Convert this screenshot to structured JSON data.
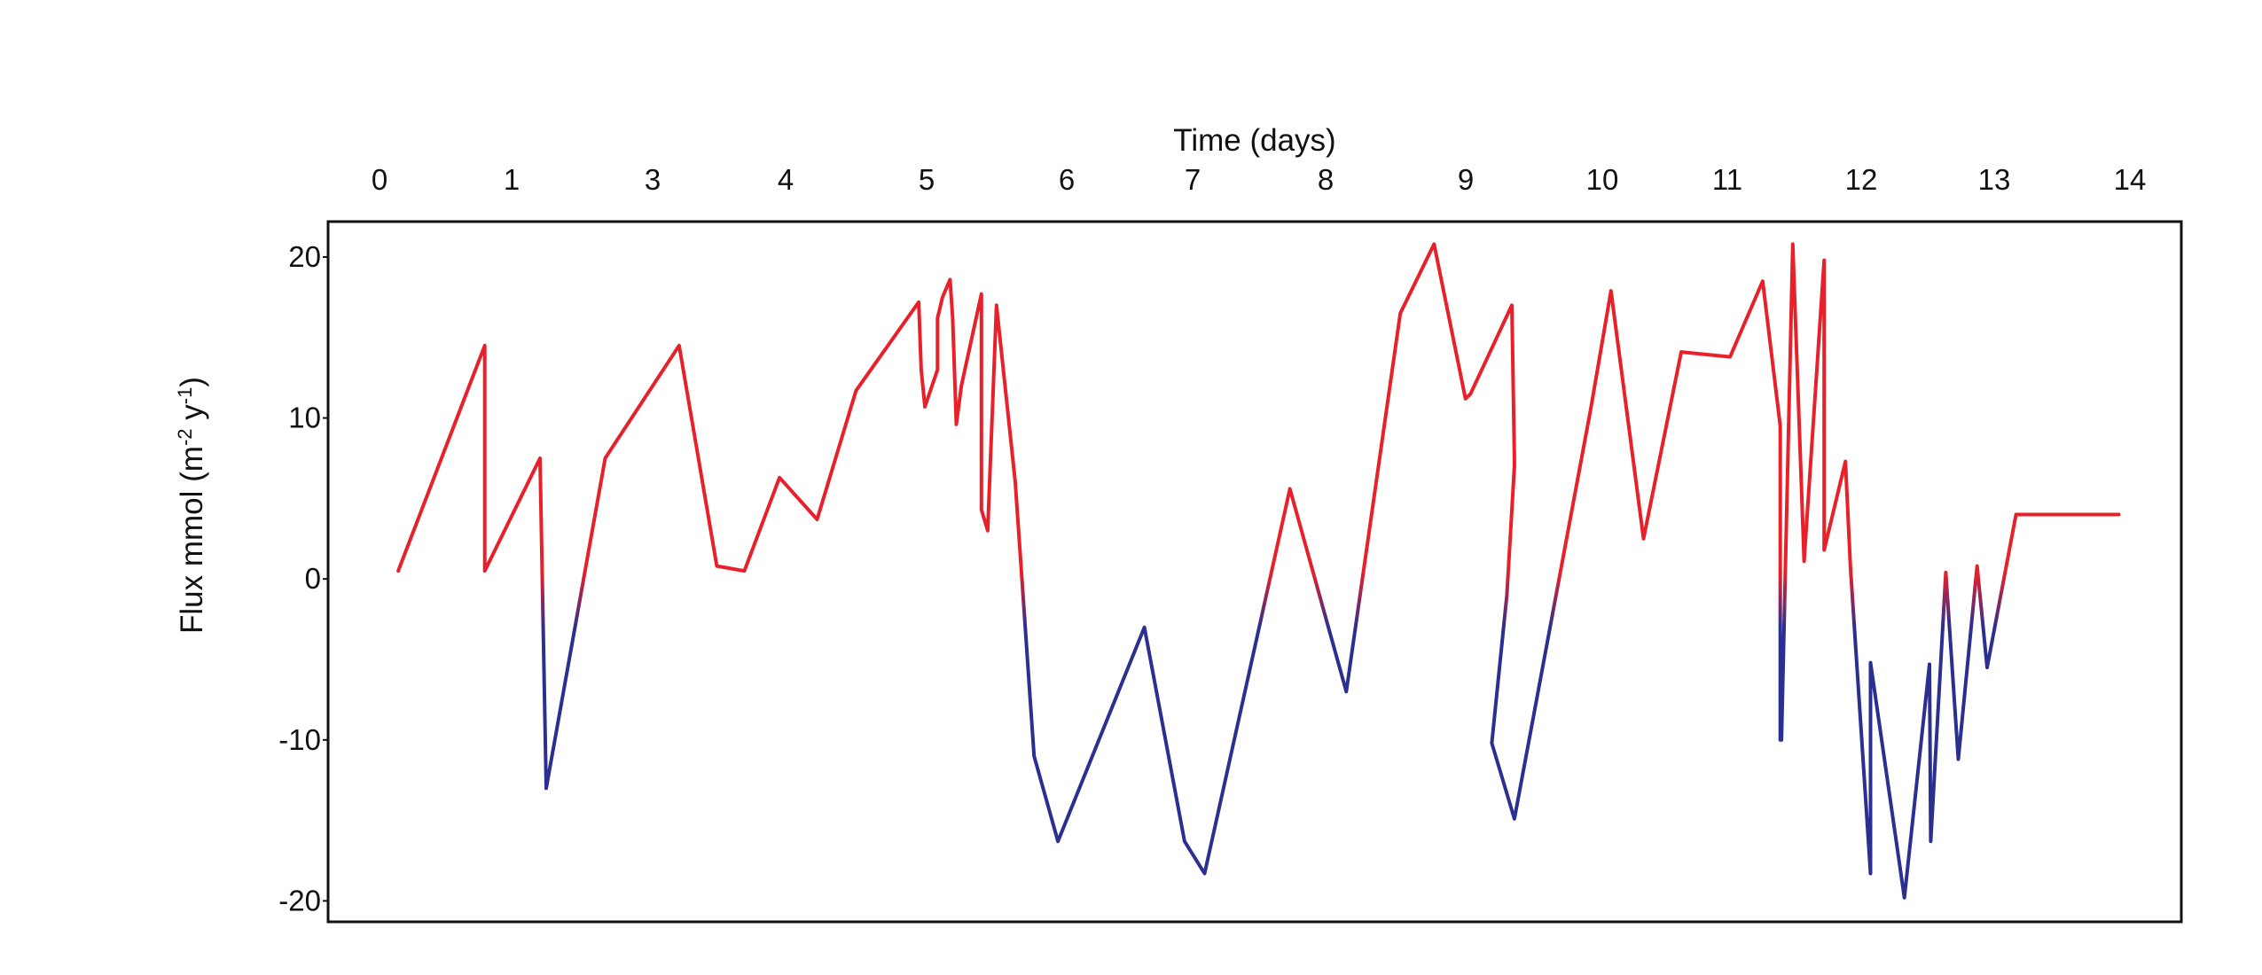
{
  "chart_data": {
    "type": "line",
    "title": "",
    "xlabel": "Time (days)",
    "ylabel_main": "Flux mmol (m",
    "ylabel_sup1": "-2",
    "ylabel_mid": " y",
    "ylabel_sup2": "-1",
    "ylabel_end": ")",
    "x_axis_position": "top",
    "xlim": [
      0,
      14
    ],
    "ylim": [
      -21.3,
      22.2
    ],
    "x_tick_labels": [
      "0",
      "1",
      "3",
      "4",
      "5",
      "6",
      "7",
      "8",
      "9",
      "10",
      "11",
      "12",
      "13",
      "14"
    ],
    "y_ticks": [
      20,
      10,
      0,
      -10,
      -20
    ],
    "y_tick_labels": [
      "20",
      "10",
      "0",
      "-10",
      "-20"
    ],
    "grid": false,
    "legend": "none",
    "colors": {
      "positive": "#e8202a",
      "negative": "#2b2f8f",
      "frame": "#111111"
    },
    "series": [
      {
        "color_mode": "gradient by sign",
        "x": [
          0.1,
          0.79,
          0.79,
          1.23,
          1.28,
          1.75,
          2.34,
          2.64,
          2.86,
          2.86,
          3.14,
          3.44,
          3.75,
          4.25,
          4.27,
          4.3,
          4.4,
          4.4,
          4.44,
          4.5,
          4.52,
          4.55,
          4.59,
          4.75,
          4.75,
          4.8,
          4.87,
          5.02,
          5.17,
          5.36,
          6.05,
          6.37,
          6.53,
          7.21,
          7.66,
          8.09,
          8.36,
          8.61,
          8.65,
          8.98,
          9.0,
          9.0,
          8.94,
          8.82,
          8.82,
          9.0,
          9.61,
          9.77,
          10.03,
          10.33,
          10.72,
          10.98,
          11.12,
          11.12,
          11.13,
          11.22,
          11.31,
          11.47,
          11.47,
          11.64,
          11.68,
          11.84,
          11.84,
          12.11,
          12.31,
          12.32,
          12.44,
          12.54,
          12.69,
          12.77,
          13.0,
          13.07,
          13.18,
          13.26,
          13.35,
          13.48,
          13.65,
          13.82
        ],
        "y": [
          0.5,
          14.5,
          0.5,
          7.5,
          -13.0,
          7.5,
          14.5,
          0.8,
          0.5,
          0.5,
          6.3,
          3.7,
          11.7,
          17.2,
          13.0,
          10.7,
          13.0,
          16.2,
          17.5,
          18.6,
          16.3,
          9.6,
          12.0,
          17.7,
          4.3,
          3.0,
          17.0,
          6.0,
          -11.0,
          -16.3,
          -3.0,
          -16.3,
          -18.3,
          5.6,
          -7.0,
          16.5,
          20.8,
          11.2,
          11.5,
          17.0,
          7.5,
          7.0,
          -1.0,
          -10.2,
          -10.2,
          -14.9,
          10.6,
          17.9,
          2.5,
          14.1,
          13.8,
          18.5,
          9.5,
          -10.0,
          -10.0,
          20.8,
          1.1,
          19.8,
          1.8,
          7.3,
          0.7,
          -18.3,
          -5.2,
          -19.8,
          -5.3,
          -16.3,
          0.4,
          -11.2,
          0.8,
          -5.5,
          4.0,
          4.0,
          4.0,
          4.0,
          4.0,
          4.0,
          4.0,
          4.0
        ]
      }
    ]
  }
}
